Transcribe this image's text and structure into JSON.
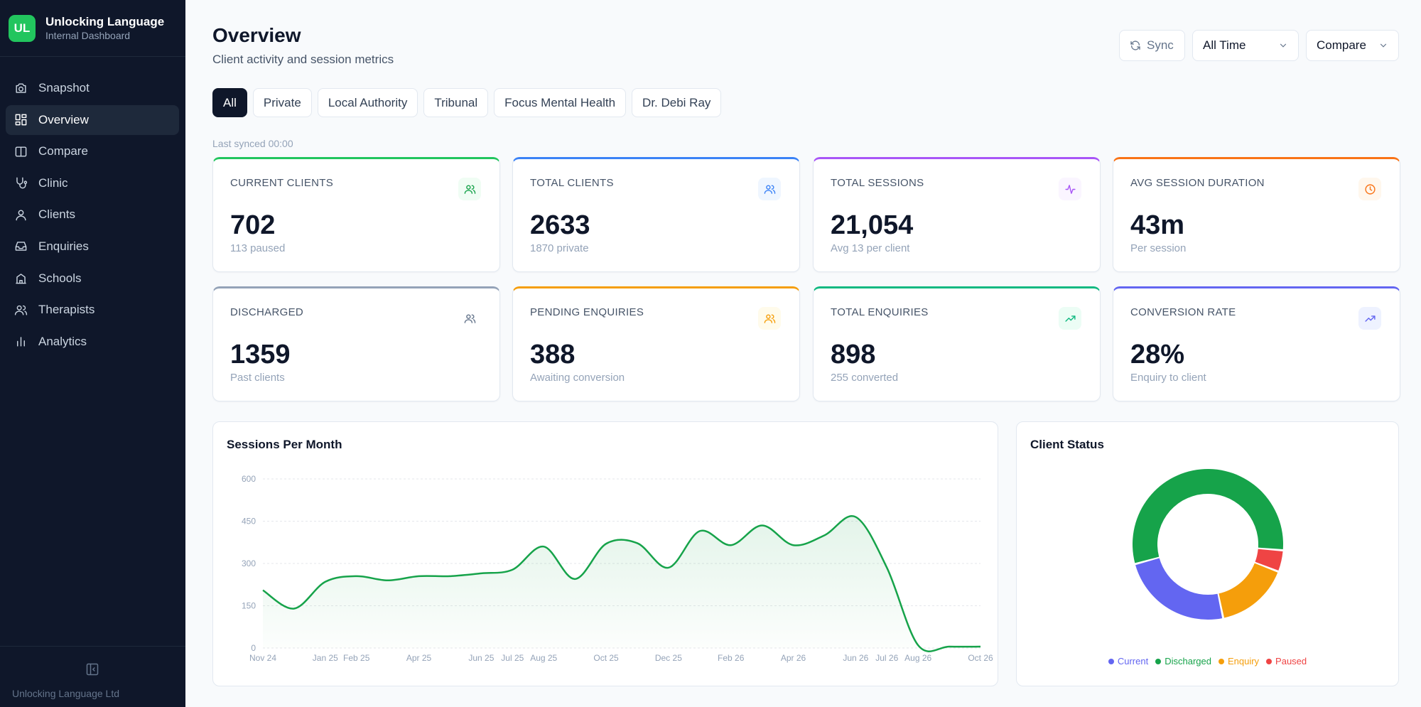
{
  "brand": {
    "logo": "UL",
    "title": "Unlocking Language",
    "subtitle": "Internal Dashboard"
  },
  "sidebar": {
    "items": [
      {
        "label": "Snapshot",
        "icon": "camera-icon",
        "active": false
      },
      {
        "label": "Overview",
        "icon": "grid-icon",
        "active": true
      },
      {
        "label": "Compare",
        "icon": "columns-icon",
        "active": false
      },
      {
        "label": "Clinic",
        "icon": "stethoscope-icon",
        "active": false
      },
      {
        "label": "Clients",
        "icon": "user-icon",
        "active": false
      },
      {
        "label": "Enquiries",
        "icon": "inbox-icon",
        "active": false
      },
      {
        "label": "Schools",
        "icon": "school-icon",
        "active": false
      },
      {
        "label": "Therapists",
        "icon": "users-icon",
        "active": false
      },
      {
        "label": "Analytics",
        "icon": "bar-chart-icon",
        "active": false
      }
    ],
    "footer": "Unlocking Language Ltd"
  },
  "header": {
    "title": "Overview",
    "subtitle": "Client activity and session metrics",
    "sync_label": "Sync",
    "time_select": "All Time",
    "compare_select": "Compare"
  },
  "filters": [
    "All",
    "Private",
    "Local Authority",
    "Tribunal",
    "Focus Mental Health",
    "Dr. Debi Ray"
  ],
  "last_synced": "Last synced 00:00",
  "stats": [
    {
      "label": "Current Clients",
      "value": "702",
      "sub": "113 paused",
      "color": "#22c55e",
      "icon": "users-icon"
    },
    {
      "label": "Total Clients",
      "value": "2633",
      "sub": "1870 private",
      "color": "#3b82f6",
      "icon": "users-icon"
    },
    {
      "label": "Total Sessions",
      "value": "21,054",
      "sub": "Avg 13 per client",
      "color": "#a855f7",
      "icon": "activity-icon"
    },
    {
      "label": "Avg Session Duration",
      "value": "43m",
      "sub": "Per session",
      "color": "#f97316",
      "icon": "clock-icon"
    },
    {
      "label": "Discharged",
      "value": "1359",
      "sub": "Past clients",
      "color": "#94a3b8",
      "icon": "users-icon"
    },
    {
      "label": "Pending Enquiries",
      "value": "388",
      "sub": "Awaiting conversion",
      "color": "#f59e0b",
      "icon": "users-icon"
    },
    {
      "label": "Total Enquiries",
      "value": "898",
      "sub": "255 converted",
      "color": "#10b981",
      "icon": "trending-up-icon"
    },
    {
      "label": "Conversion Rate",
      "value": "28%",
      "sub": "Enquiry to client",
      "color": "#6366f1",
      "icon": "trending-up-icon"
    }
  ],
  "chart_data": [
    {
      "type": "area",
      "title": "Sessions Per Month",
      "xlabel": "",
      "ylabel": "",
      "ylim": [
        0,
        600
      ],
      "yticks": [
        0,
        150,
        300,
        450,
        600
      ],
      "grid": true,
      "color": "#16a34a",
      "x": [
        "Nov 24",
        "Dec 24",
        "Jan 25",
        "Feb 25",
        "Mar 25",
        "Apr 25",
        "May 25",
        "Jun 25",
        "Jul 25",
        "Aug 25",
        "Sep 25",
        "Oct 25",
        "Nov 25",
        "Dec 25",
        "Jan 26",
        "Feb 26",
        "Mar 26",
        "Apr 26",
        "May 26",
        "Jun 26",
        "Jul 26",
        "Aug 26",
        "Sep 26",
        "Oct 26"
      ],
      "xtick_labels": [
        "Nov 24",
        "",
        "Jan 25",
        "Feb 25",
        "",
        "Apr 25",
        "",
        "Jun 25",
        "Jul 25",
        "Aug 25",
        "",
        "Oct 25",
        "",
        "Dec 25",
        "",
        "Feb 26",
        "",
        "Apr 26",
        "",
        "Jun 26",
        "Jul 26",
        "Aug 26",
        "",
        "Oct 26"
      ],
      "series": [
        {
          "values": [
            205,
            140,
            235,
            255,
            240,
            255,
            255,
            265,
            278,
            360,
            245,
            370,
            372,
            285,
            415,
            365,
            435,
            365,
            400,
            465,
            285,
            10,
            5,
            5
          ]
        }
      ]
    },
    {
      "type": "pie",
      "title": "Client Status",
      "legend_position": "bottom",
      "labels": [
        "Current",
        "Discharged",
        "Enquiry",
        "Paused"
      ],
      "values": [
        589,
        1359,
        388,
        113
      ],
      "colors": [
        "#6366f1",
        "#16a34a",
        "#f59e0b",
        "#ef4444"
      ]
    }
  ]
}
